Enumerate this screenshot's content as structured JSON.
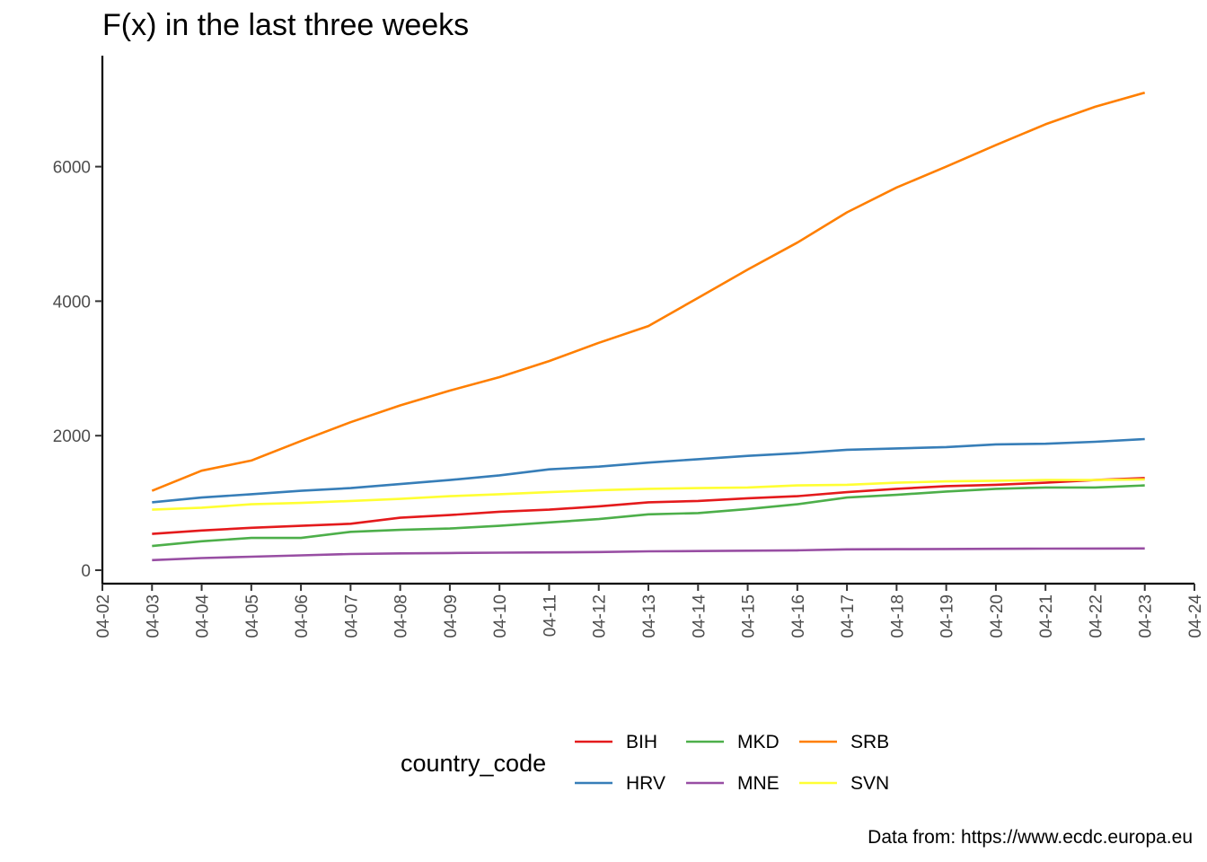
{
  "chart_data": {
    "type": "line",
    "title": "F(x) in the last three weeks",
    "caption": "Data from: https://www.ecdc.europa.eu",
    "xlabel": "",
    "ylabel": "",
    "x_ticks": [
      "04-02",
      "04-03",
      "04-04",
      "04-05",
      "04-06",
      "04-07",
      "04-08",
      "04-09",
      "04-10",
      "04-11",
      "04-12",
      "04-13",
      "04-14",
      "04-15",
      "04-16",
      "04-17",
      "04-18",
      "04-19",
      "04-20",
      "04-21",
      "04-22",
      "04-23",
      "04-24"
    ],
    "y_ticks": [
      0,
      2000,
      4000,
      6000
    ],
    "ylim": [
      -200,
      7650
    ],
    "x": [
      "04-03",
      "04-04",
      "04-05",
      "04-06",
      "04-07",
      "04-08",
      "04-09",
      "04-10",
      "04-11",
      "04-12",
      "04-13",
      "04-14",
      "04-15",
      "04-16",
      "04-17",
      "04-18",
      "04-19",
      "04-20",
      "04-21",
      "04-22",
      "04-23"
    ],
    "legend": {
      "title": "country_code",
      "position": "bottom"
    },
    "grid": false,
    "series": [
      {
        "name": "BIH",
        "color": "#e41a1c",
        "values": [
          540,
          590,
          630,
          660,
          690,
          780,
          820,
          870,
          900,
          950,
          1010,
          1030,
          1070,
          1100,
          1160,
          1210,
          1250,
          1270,
          1300,
          1340,
          1370
        ]
      },
      {
        "name": "HRV",
        "color": "#377eb8",
        "values": [
          1010,
          1080,
          1130,
          1180,
          1220,
          1280,
          1340,
          1410,
          1500,
          1540,
          1600,
          1650,
          1700,
          1740,
          1790,
          1810,
          1830,
          1870,
          1880,
          1910,
          1950
        ]
      },
      {
        "name": "MKD",
        "color": "#4daf4a",
        "values": [
          360,
          430,
          480,
          480,
          570,
          600,
          620,
          660,
          710,
          760,
          830,
          850,
          910,
          980,
          1080,
          1120,
          1170,
          1210,
          1230,
          1230,
          1260
        ]
      },
      {
        "name": "MNE",
        "color": "#984ea3",
        "values": [
          150,
          180,
          200,
          220,
          240,
          250,
          255,
          260,
          265,
          270,
          280,
          285,
          290,
          295,
          310,
          312,
          315,
          318,
          320,
          322,
          324
        ]
      },
      {
        "name": "SRB",
        "color": "#ff7f00",
        "values": [
          1180,
          1480,
          1630,
          1920,
          2200,
          2450,
          2670,
          2870,
          3110,
          3380,
          3630,
          4050,
          4470,
          4870,
          5320,
          5690,
          6000,
          6320,
          6630,
          6890,
          7100
        ]
      },
      {
        "name": "SVN",
        "color": "#ffff33",
        "values": [
          900,
          930,
          980,
          1000,
          1030,
          1060,
          1100,
          1130,
          1160,
          1190,
          1210,
          1220,
          1230,
          1260,
          1270,
          1300,
          1320,
          1330,
          1340,
          1340,
          1350
        ]
      }
    ]
  }
}
